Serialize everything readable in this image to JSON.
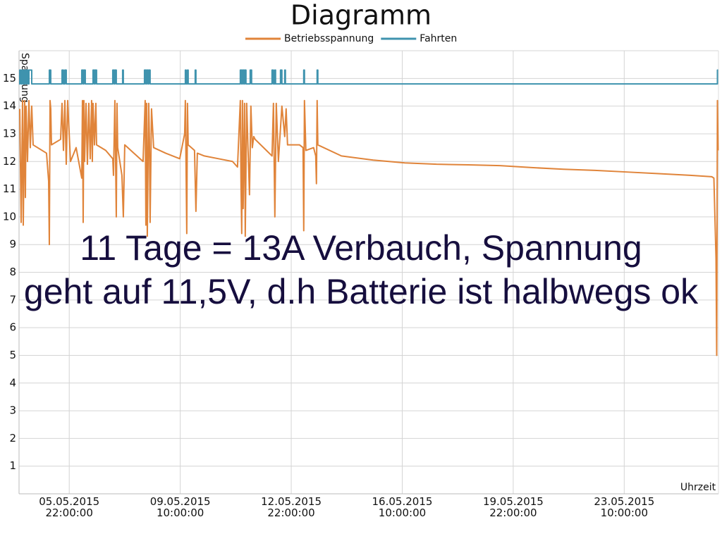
{
  "chart_data": {
    "type": "line",
    "title": "Diagramm",
    "y_label": "Spannung",
    "x_label": "Uhrzeit",
    "annotations": [
      "11 Tage = 13A Verbauch, Spannung",
      "geht auf 11,5V, d.h Batterie ist halbwegs ok"
    ],
    "grid": true,
    "legend": "top",
    "ylim": [
      0,
      16
    ],
    "yticks": [
      1,
      2,
      3,
      4,
      5,
      6,
      7,
      8,
      9,
      10,
      11,
      12,
      13,
      14,
      15
    ],
    "xlim": [
      "04.05.2015 08:00:00",
      "26.05.2015 09:20:00"
    ],
    "xticks": [
      "05.05.2015 22:00:00",
      "09.05.2015 10:00:00",
      "12.05.2015 22:00:00",
      "16.05.2015 10:00:00",
      "19.05.2015 22:00:00",
      "23.05.2015 10:00:00"
    ],
    "series": [
      {
        "name": "Betriebsspannung",
        "color": "#e0843a",
        "x": [
          "04.05.2015 08:32:00",
          "04.05.2015 09:36:00",
          "04.05.2015 10:40:00",
          "04.05.2015 11:12:00",
          "04.05.2015 12:16:00",
          "04.05.2015 12:48:00",
          "04.05.2015 13:20:00",
          "04.05.2015 14:24:00",
          "04.05.2015 15:28:00",
          "04.05.2015 16:32:00",
          "04.05.2015 17:36:00",
          "04.05.2015 18:40:00",
          "05.05.2015 04:48:00",
          "05.05.2015 06:24:00",
          "05.05.2015 06:56:00",
          "05.05.2015 07:28:00",
          "05.05.2015 08:00:00",
          "05.05.2015 08:32:00",
          "05.05.2015 15:28:00",
          "05.05.2015 16:32:00",
          "05.05.2015 17:36:00",
          "05.05.2015 18:40:00",
          "05.05.2015 19:44:00",
          "05.05.2015 20:48:00",
          "05.05.2015 22:56:00",
          "06.05.2015 03:12:00",
          "06.05.2015 07:28:00",
          "06.05.2015 08:00:00",
          "06.05.2015 08:32:00",
          "06.05.2015 09:04:00",
          "06.05.2015 09:36:00",
          "06.05.2015 10:40:00",
          "06.05.2015 11:44:00",
          "06.05.2015 12:48:00",
          "06.05.2015 13:52:00",
          "06.05.2015 14:56:00",
          "06.05.2015 15:28:00",
          "06.05.2015 16:00:00",
          "06.05.2015 17:04:00",
          "06.05.2015 18:08:00",
          "06.05.2015 18:40:00",
          "07.05.2015 01:36:00",
          "07.05.2015 06:56:00",
          "07.05.2015 07:28:00",
          "07.05.2015 08:32:00",
          "07.05.2015 09:36:00",
          "07.05.2015 10:08:00",
          "07.05.2015 10:40:00",
          "07.05.2015 13:52:00",
          "07.05.2015 14:56:00",
          "07.05.2015 16:00:00",
          "07.05.2015 22:56:00",
          "08.05.2015 05:52:00",
          "08.05.2015 07:28:00",
          "08.05.2015 08:00:00",
          "08.05.2015 08:32:00",
          "08.05.2015 09:04:00",
          "08.05.2015 10:08:00",
          "08.05.2015 10:40:00",
          "08.05.2015 11:12:00",
          "08.05.2015 12:16:00",
          "08.05.2015 13:52:00",
          "08.05.2015 22:56:00",
          "09.05.2015 09:36:00",
          "09.05.2015 13:20:00",
          "09.05.2015 13:52:00",
          "09.05.2015 14:56:00",
          "09.05.2015 15:28:00",
          "09.05.2015 16:00:00",
          "09.05.2015 20:48:00",
          "09.05.2015 21:52:00",
          "09.05.2015 22:56:00",
          "10.05.2015 04:16:00",
          "10.05.2015 14:56:00",
          "11.05.2015 01:36:00",
          "11.05.2015 05:20:00",
          "11.05.2015 07:28:00",
          "11.05.2015 08:00:00",
          "11.05.2015 08:32:00",
          "11.05.2015 09:04:00",
          "11.05.2015 09:36:00",
          "11.05.2015 10:40:00",
          "11.05.2015 11:12:00",
          "11.05.2015 12:16:00",
          "11.05.2015 13:20:00",
          "11.05.2015 14:24:00",
          "11.05.2015 15:28:00",
          "11.05.2015 16:32:00",
          "11.05.2015 17:36:00",
          "11.05.2015 18:40:00",
          "12.05.2015 03:12:00",
          "12.05.2015 07:28:00",
          "12.05.2015 08:32:00",
          "12.05.2015 09:36:00",
          "12.05.2015 10:40:00",
          "12.05.2015 12:16:00",
          "12.05.2015 14:56:00",
          "12.05.2015 17:04:00",
          "12.05.2015 18:08:00",
          "12.05.2015 19:12:00",
          "13.05.2015 00:32:00",
          "13.05.2015 04:16:00",
          "13.05.2015 06:56:00",
          "13.05.2015 07:28:00",
          "13.05.2015 08:00:00",
          "13.05.2015 09:04:00",
          "13.05.2015 14:56:00",
          "13.05.2015 16:32:00",
          "13.05.2015 17:04:00",
          "13.05.2015 17:36:00",
          "13.05.2015 18:08:00",
          "14.05.2015 12:00:00",
          "15.05.2015 12:00:00",
          "16.05.2015 12:00:00",
          "17.05.2015 12:00:00",
          "18.05.2015 12:00:00",
          "19.05.2015 12:00:00",
          "20.05.2015 12:00:00",
          "21.05.2015 12:00:00",
          "22.05.2015 12:00:00",
          "23.05.2015 12:00:00",
          "24.05.2015 12:00:00",
          "25.05.2015 12:00:00",
          "26.05.2015 04:16:00",
          "26.05.2015 05:52:00",
          "26.05.2015 07:28:00",
          "26.05.2015 08:00:00",
          "26.05.2015 08:32:00",
          "26.05.2015 09:04:00"
        ],
        "values": [
          13.9,
          9.8,
          14.2,
          9.7,
          14.2,
          10.7,
          14.0,
          12.0,
          14.2,
          12.5,
          14.0,
          12.6,
          12.3,
          11.3,
          9.0,
          14.2,
          13.9,
          12.6,
          12.8,
          14.1,
          12.4,
          14.2,
          11.9,
          14.2,
          12.0,
          12.5,
          11.4,
          14.2,
          9.8,
          14.2,
          12.0,
          14.1,
          11.9,
          14.1,
          12.1,
          14.2,
          12.0,
          14.1,
          12.6,
          14.1,
          12.6,
          12.4,
          12.1,
          11.5,
          14.2,
          10.0,
          14.1,
          12.5,
          11.5,
          10.0,
          12.6,
          12.3,
          12.0,
          14.2,
          9.7,
          14.1,
          9.3,
          14.1,
          12.8,
          9.8,
          13.9,
          12.5,
          12.3,
          12.1,
          13.0,
          14.2,
          9.4,
          14.1,
          12.6,
          12.4,
          10.2,
          12.3,
          12.2,
          12.1,
          12.0,
          11.8,
          14.2,
          11.1,
          9.4,
          14.2,
          10.3,
          14.1,
          9.3,
          14.1,
          12.4,
          10.8,
          14.0,
          12.5,
          12.9,
          12.8,
          12.4,
          12.2,
          14.1,
          10.0,
          14.1,
          12.0,
          14.0,
          12.9,
          13.9,
          12.6,
          12.6,
          12.6,
          12.5,
          9.5,
          14.2,
          12.4,
          12.5,
          12.2,
          11.2,
          14.2,
          12.6,
          12.2,
          12.05,
          11.95,
          11.9,
          11.88,
          11.85,
          11.78,
          11.72,
          11.68,
          11.62,
          11.56,
          11.5,
          11.45,
          11.4,
          8.5,
          5.0,
          14.2,
          12.4
        ]
      },
      {
        "name": "Fahrten",
        "color": "#3f93ae",
        "step": "hv",
        "x": [
          "04.05.2015 08:00:00",
          "04.05.2015 08:32:00",
          "04.05.2015 09:36:00",
          "04.05.2015 10:08:00",
          "04.05.2015 11:12:00",
          "04.05.2015 12:16:00",
          "04.05.2015 13:20:00",
          "04.05.2015 13:52:00",
          "04.05.2015 14:56:00",
          "04.05.2015 15:28:00",
          "04.05.2015 17:36:00",
          "05.05.2015 06:56:00",
          "05.05.2015 08:00:00",
          "05.05.2015 16:32:00",
          "05.05.2015 17:36:00",
          "05.05.2015 18:40:00",
          "05.05.2015 19:44:00",
          "06.05.2015 07:28:00",
          "06.05.2015 08:32:00",
          "06.05.2015 09:04:00",
          "06.05.2015 10:08:00",
          "06.05.2015 16:00:00",
          "06.05.2015 17:04:00",
          "06.05.2015 17:36:00",
          "06.05.2015 18:40:00",
          "07.05.2015 06:56:00",
          "07.05.2015 08:00:00",
          "07.05.2015 08:32:00",
          "07.05.2015 09:36:00",
          "07.05.2015 14:24:00",
          "07.05.2015 14:56:00",
          "08.05.2015 06:56:00",
          "08.05.2015 08:00:00",
          "08.05.2015 08:32:00",
          "08.05.2015 09:36:00",
          "08.05.2015 10:08:00",
          "08.05.2015 11:12:00",
          "09.05.2015 13:52:00",
          "09.05.2015 14:24:00",
          "09.05.2015 15:28:00",
          "09.05.2015 16:00:00",
          "09.05.2015 21:20:00",
          "09.05.2015 21:52:00",
          "11.05.2015 07:28:00",
          "11.05.2015 08:32:00",
          "11.05.2015 09:04:00",
          "11.05.2015 10:08:00",
          "11.05.2015 10:40:00",
          "11.05.2015 11:44:00",
          "11.05.2015 14:56:00",
          "11.05.2015 16:00:00",
          "12.05.2015 07:28:00",
          "12.05.2015 08:32:00",
          "12.05.2015 09:36:00",
          "12.05.2015 10:08:00",
          "12.05.2015 13:52:00",
          "12.05.2015 14:56:00",
          "12.05.2015 17:04:00",
          "12.05.2015 17:36:00",
          "13.05.2015 07:28:00",
          "13.05.2015 08:00:00",
          "13.05.2015 17:36:00",
          "13.05.2015 18:08:00",
          "26.05.2015 08:32:00",
          "26.05.2015 09:04:00"
        ],
        "values": [
          14.8,
          15.3,
          14.8,
          15.3,
          14.8,
          15.3,
          14.8,
          15.3,
          14.8,
          15.3,
          14.8,
          15.3,
          14.8,
          15.3,
          14.8,
          15.3,
          14.8,
          15.3,
          14.8,
          15.3,
          14.8,
          15.3,
          14.8,
          15.3,
          14.8,
          15.3,
          14.8,
          15.3,
          14.8,
          15.3,
          14.8,
          15.3,
          14.8,
          15.3,
          14.8,
          15.3,
          14.8,
          15.3,
          14.8,
          15.3,
          14.8,
          15.3,
          14.8,
          15.3,
          14.8,
          15.3,
          14.8,
          15.3,
          14.8,
          15.3,
          14.8,
          15.3,
          14.8,
          15.3,
          14.8,
          15.3,
          14.8,
          15.3,
          14.8,
          15.3,
          14.8,
          15.3,
          14.8,
          15.3,
          15.3
        ]
      }
    ]
  }
}
